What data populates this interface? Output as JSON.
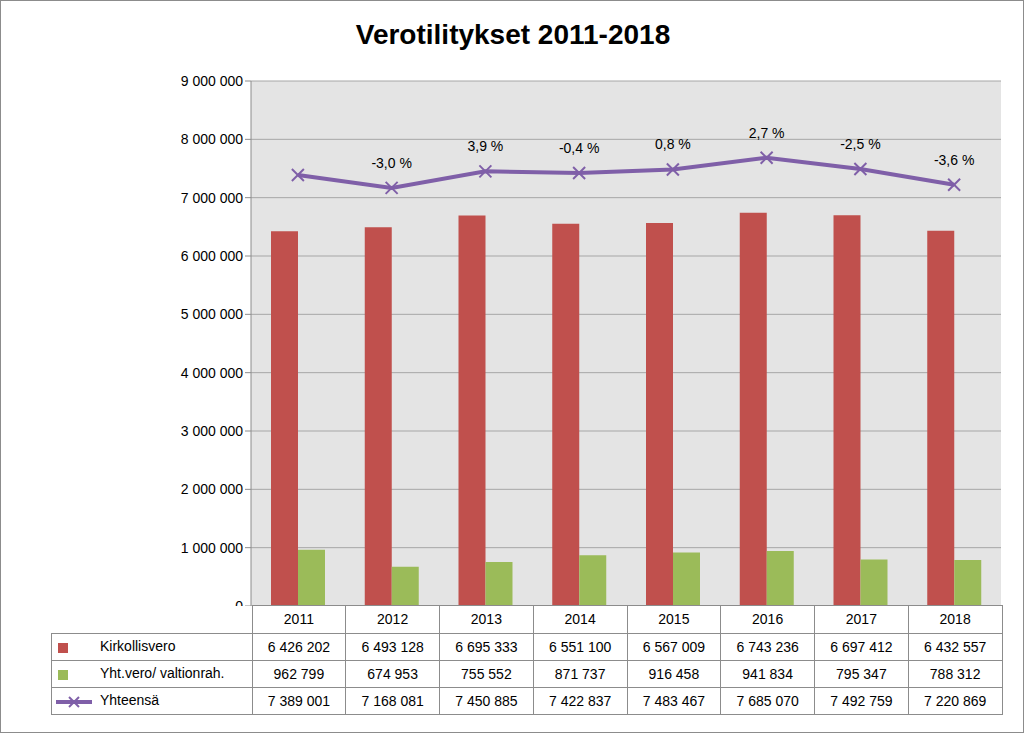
{
  "chart_data": {
    "type": "bar",
    "title": "Verotilitykset 2011-2018",
    "categories": [
      "2011",
      "2012",
      "2013",
      "2014",
      "2015",
      "2016",
      "2017",
      "2018"
    ],
    "series": [
      {
        "name": "Kirkollisvero",
        "type": "bar",
        "color": "#c0504d",
        "values": [
          6426202,
          6493128,
          6695333,
          6551100,
          6567009,
          6743236,
          6697412,
          6432557
        ],
        "value_labels": [
          "6 426 202",
          "6 493 128",
          "6 695 333",
          "6 551 100",
          "6 567 009",
          "6 743 236",
          "6 697 412",
          "6 432 557"
        ]
      },
      {
        "name": "Yht.vero/ valtionrah.",
        "type": "bar",
        "color": "#9bbb59",
        "values": [
          962799,
          674953,
          755552,
          871737,
          916458,
          941834,
          795347,
          788312
        ],
        "value_labels": [
          "962 799",
          "674 953",
          "755 552",
          "871 737",
          "916 458",
          "941 834",
          "795 347",
          "788 312"
        ]
      },
      {
        "name": "Yhteensä",
        "type": "line",
        "color": "#7f5fa8",
        "marker": "x",
        "values": [
          7389001,
          7168081,
          7450885,
          7422837,
          7483467,
          7685070,
          7492759,
          7220869
        ],
        "value_labels": [
          "7 389 001",
          "7 168 081",
          "7 450 885",
          "7 422 837",
          "7 483 467",
          "7 685 070",
          "7 492 759",
          "7 220 869"
        ],
        "annotations": [
          null,
          "-3,0 %",
          "3,9 %",
          "-0,4 %",
          "0,8 %",
          "2,7 %",
          "-2,5 %",
          "-3,6 %"
        ]
      }
    ],
    "ylim": [
      0,
      9000000
    ],
    "yticks": [
      {
        "value": 0,
        "label": "0"
      },
      {
        "value": 1000000,
        "label": "1 000 000"
      },
      {
        "value": 2000000,
        "label": "2 000 000"
      },
      {
        "value": 3000000,
        "label": "3 000 000"
      },
      {
        "value": 4000000,
        "label": "4 000 000"
      },
      {
        "value": 5000000,
        "label": "5 000 000"
      },
      {
        "value": 6000000,
        "label": "6 000 000"
      },
      {
        "value": 7000000,
        "label": "7 000 000"
      },
      {
        "value": 8000000,
        "label": "8 000 000"
      },
      {
        "value": 9000000,
        "label": "9 000 000"
      }
    ],
    "grid": true,
    "legend": "bottom"
  }
}
